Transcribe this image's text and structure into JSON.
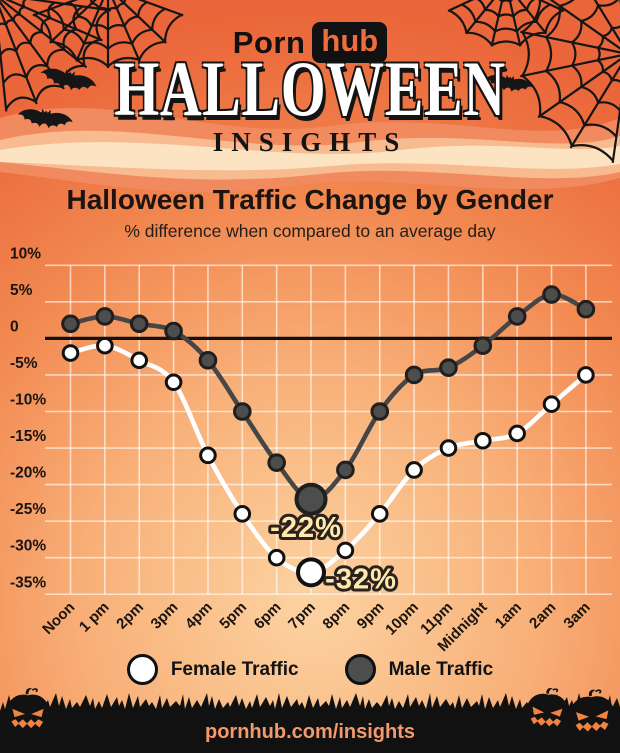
{
  "header": {
    "logo_porn": "Porn",
    "logo_hub": "hub",
    "title": "HALLOWEEN",
    "subtitle": "INSIGHTS"
  },
  "chart": {
    "title": "Halloween Traffic Change by Gender",
    "subtitle": "% difference when compared to an average day"
  },
  "chart_data": {
    "type": "line",
    "categories": [
      "Noon",
      "1 pm",
      "2pm",
      "3pm",
      "4pm",
      "5pm",
      "6pm",
      "7pm",
      "8pm",
      "9pm",
      "10pm",
      "11pm",
      "Midnight",
      "1am",
      "2am",
      "3am"
    ],
    "series": [
      {
        "name": "Male Traffic",
        "color": "#464646",
        "point_fill": "#4d4d4d",
        "point_stroke": "#1f1f1f",
        "values": [
          2,
          3,
          2,
          1,
          -3,
          -10,
          -17,
          -22,
          -18,
          -10,
          -5,
          -4,
          -1,
          3,
          6,
          4
        ]
      },
      {
        "name": "Female Traffic",
        "color": "#ffffff",
        "point_fill": "#ffffff",
        "point_stroke": "#111111",
        "values": [
          -2,
          -1,
          -3,
          -6,
          -16,
          -24,
          -30,
          -32,
          -29,
          -24,
          -18,
          -15,
          -14,
          -13,
          -9,
          -5
        ]
      }
    ],
    "y_ticks": [
      "10%",
      "5%",
      "0",
      "-5%",
      "-10%",
      "-15%",
      "-20%",
      "-25%",
      "-30%",
      "-35%"
    ],
    "ylim": [
      -35,
      10
    ],
    "xlabel": "",
    "ylabel": "",
    "grid": true,
    "legend_position": "bottom",
    "annotations": [
      {
        "text": "-22%",
        "series": "Male Traffic",
        "x_index": 7,
        "value": -22
      },
      {
        "text": "-32%",
        "series": "Female Traffic",
        "x_index": 7,
        "value": -32
      }
    ]
  },
  "legend": {
    "female_label": "Female Traffic",
    "male_label": "Male Traffic"
  },
  "footer": {
    "url": "pornhub.com/insights"
  },
  "colors": {
    "page_orange": "#ec6c3e",
    "page_light": "#fcd3a2",
    "annotation_fill": "#ffe9ac",
    "annotation_outline": "#2a221c",
    "grid_line": "#ffffff",
    "zero_line": "#121212",
    "text_dark": "#1b1410",
    "footer_url": "#f4996b",
    "logo_hub_text": "#ee6d40",
    "pumpkin_face": "#f08440"
  }
}
